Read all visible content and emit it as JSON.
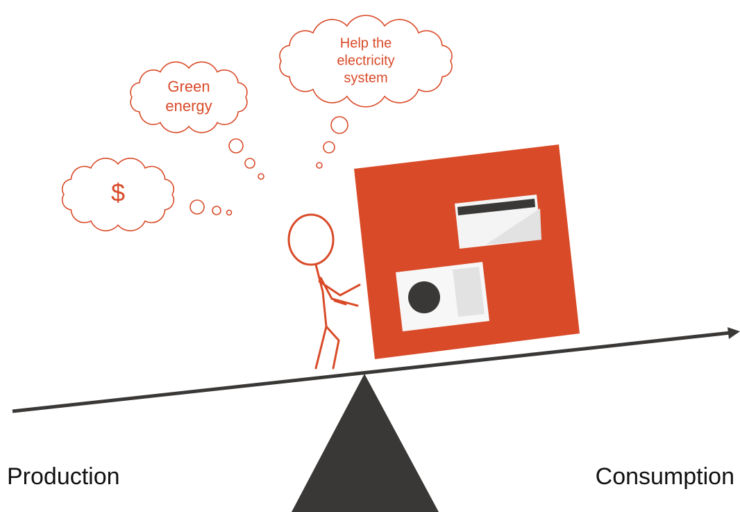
{
  "thoughts": [
    {
      "lines": [
        "Help the",
        "electricity",
        "system"
      ]
    },
    {
      "lines": [
        "Green",
        "energy"
      ]
    },
    {
      "lines": [
        "$"
      ]
    }
  ],
  "labels": {
    "left": "Production",
    "right": "Consumption"
  }
}
